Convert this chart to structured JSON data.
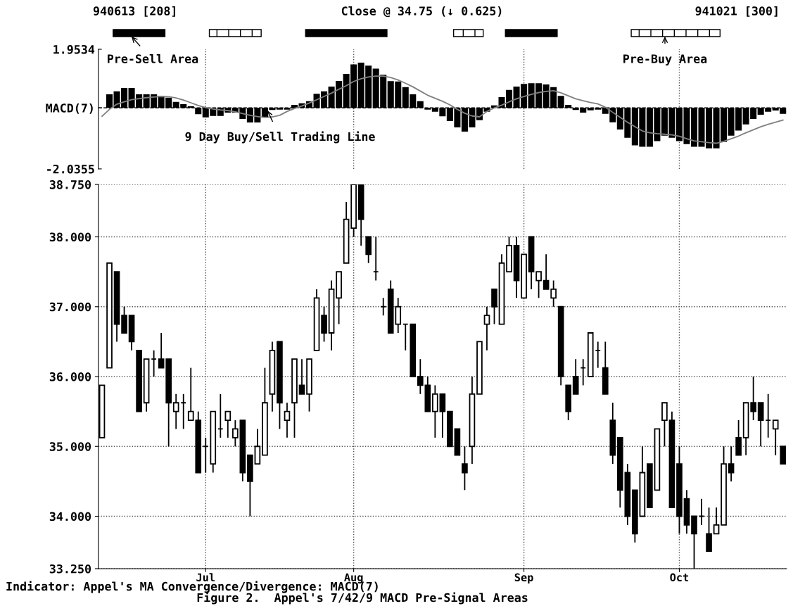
{
  "chart_data": [
    {
      "type": "bar",
      "categories": [
        null,
        null,
        null,
        null,
        null,
        null,
        null,
        null,
        null,
        null,
        null,
        null,
        null,
        null,
        null,
        null,
        null,
        null,
        null,
        null,
        null,
        null,
        null,
        null,
        null,
        null,
        null,
        null,
        null,
        null,
        null,
        null,
        null,
        null,
        null,
        null,
        null,
        null,
        null,
        null,
        null,
        null,
        null,
        null,
        null,
        null,
        null,
        null,
        null,
        null,
        null,
        null,
        null,
        null,
        null,
        null,
        null,
        null,
        null,
        null,
        null,
        null,
        null,
        null,
        null,
        null,
        null,
        null,
        null,
        null,
        null,
        null,
        null,
        null,
        null,
        null,
        null,
        null,
        null,
        null,
        null,
        null,
        null,
        null,
        null,
        null,
        null,
        null,
        null,
        null,
        null,
        null,
        null
      ],
      "series": [
        {
          "type": "bar",
          "color": "#000000",
          "values": [
            null,
            0.45,
            0.55,
            0.66,
            0.66,
            0.45,
            0.45,
            0.45,
            0.4,
            0.34,
            0.2,
            0.12,
            0.05,
            -0.21,
            -0.32,
            -0.27,
            -0.27,
            -0.16,
            -0.16,
            -0.37,
            -0.49,
            -0.49,
            -0.32,
            -0.07,
            -0.06,
            -0.06,
            0.1,
            0.15,
            0.22,
            0.47,
            0.55,
            0.71,
            0.9,
            1.13,
            1.45,
            1.51,
            1.41,
            1.31,
            1.1,
            0.89,
            0.88,
            0.69,
            0.45,
            0.22,
            -0.06,
            -0.13,
            -0.28,
            -0.44,
            -0.65,
            -0.79,
            -0.65,
            -0.41,
            -0.13,
            0.08,
            0.36,
            0.6,
            0.71,
            0.8,
            0.82,
            0.82,
            0.78,
            0.69,
            0.4,
            0.1,
            -0.07,
            -0.16,
            -0.08,
            -0.06,
            -0.2,
            -0.48,
            -0.72,
            -1.0,
            -1.25,
            -1.3,
            -1.3,
            -1.11,
            -0.93,
            -1.0,
            -1.11,
            -1.21,
            -1.3,
            -1.3,
            -1.35,
            -1.35,
            -1.14,
            -0.93,
            -0.76,
            -0.55,
            -0.37,
            -0.23,
            -0.13,
            -0.09,
            -0.2
          ]
        },
        {
          "type": "line",
          "color": "#808080",
          "values": [
            -0.28,
            -0.05,
            0.12,
            0.2,
            0.27,
            0.31,
            0.34,
            0.36,
            0.38,
            0.37,
            0.33,
            0.26,
            0.17,
            0.08,
            0.01,
            -0.04,
            -0.07,
            -0.09,
            -0.13,
            -0.19,
            -0.25,
            -0.29,
            -0.32,
            -0.3,
            -0.25,
            -0.12,
            -0.02,
            0.06,
            0.16,
            0.27,
            0.38,
            0.49,
            0.62,
            0.74,
            0.88,
            0.97,
            1.03,
            1.06,
            1.06,
            1.01,
            0.93,
            0.82,
            0.7,
            0.56,
            0.42,
            0.32,
            0.22,
            0.1,
            -0.05,
            -0.18,
            -0.27,
            -0.3,
            -0.12,
            0.0,
            0.09,
            0.2,
            0.3,
            0.38,
            0.45,
            0.51,
            0.55,
            0.57,
            0.5,
            0.4,
            0.3,
            0.24,
            0.18,
            0.13,
            0.02,
            -0.15,
            -0.32,
            -0.48,
            -0.63,
            -0.77,
            -0.83,
            -0.86,
            -0.88,
            -0.9,
            -0.95,
            -1.03,
            -1.1,
            -1.13,
            -1.16,
            -1.18,
            -1.12,
            -1.03,
            -0.94,
            -0.83,
            -0.73,
            -0.63,
            -0.55,
            -0.48,
            -0.41
          ]
        }
      ],
      "ylim": [
        -2.0355,
        1.9534
      ],
      "yticks": [
        1.9534,
        {
          "value": 0,
          "label": "MACD(7)"
        },
        -2.0355
      ],
      "tick_labels": "y",
      "grid": "x",
      "ref_lines": [
        {
          "axis": "y",
          "value": 0,
          "line_style": "dashed"
        }
      ],
      "annotations": [
        "940613 [208]",
        "Close @ 34.75 (↓ 0.625)",
        "941021 [300]",
        "Pre-Sell Area",
        "Pre-Buy Area",
        "9 Day Buy/Sell Trading Line"
      ]
    },
    {
      "type": "candlestick",
      "categories": [
        null,
        null,
        null,
        null,
        null,
        null,
        null,
        null,
        null,
        null,
        null,
        null,
        null,
        null,
        "Jul",
        null,
        null,
        null,
        null,
        null,
        null,
        null,
        null,
        null,
        null,
        null,
        null,
        null,
        null,
        null,
        null,
        null,
        null,
        null,
        "Aug",
        null,
        null,
        null,
        null,
        null,
        null,
        null,
        null,
        null,
        null,
        null,
        null,
        null,
        null,
        null,
        null,
        null,
        null,
        null,
        null,
        null,
        null,
        "Sep",
        null,
        null,
        null,
        null,
        null,
        null,
        null,
        null,
        null,
        null,
        null,
        null,
        null,
        null,
        null,
        null,
        null,
        null,
        null,
        null,
        "Oct",
        null,
        null,
        null,
        null,
        null,
        null,
        null,
        null,
        null,
        null,
        null,
        null,
        null,
        null
      ],
      "ohlc": [
        [
          35.125,
          35.875,
          35.125,
          35.875
        ],
        [
          36.125,
          37.625,
          36.125,
          37.625
        ],
        [
          37.5,
          37.5,
          36.5,
          36.75
        ],
        [
          36.875,
          37.0,
          36.625,
          36.625
        ],
        [
          36.875,
          36.875,
          36.375,
          36.5
        ],
        [
          36.375,
          36.375,
          35.5,
          35.5
        ],
        [
          35.625,
          36.25,
          35.5,
          36.25
        ],
        [
          36.25,
          36.375,
          36.0,
          36.25
        ],
        [
          36.25,
          36.625,
          36.125,
          36.125
        ],
        [
          36.25,
          36.25,
          35.0,
          35.625
        ],
        [
          35.5,
          35.75,
          35.25,
          35.625
        ],
        [
          35.625,
          35.75,
          35.25,
          35.625
        ],
        [
          35.375,
          36.125,
          35.375,
          35.5
        ],
        [
          35.375,
          35.5,
          34.625,
          34.625
        ],
        [
          35.0,
          35.125,
          34.625,
          35.0
        ],
        [
          34.75,
          35.5,
          34.625,
          35.5
        ],
        [
          35.25,
          35.75,
          35.125,
          35.25
        ],
        [
          35.375,
          35.5,
          35.125,
          35.5
        ],
        [
          35.125,
          35.375,
          35.0,
          35.25
        ],
        [
          35.375,
          35.375,
          34.5,
          34.625
        ],
        [
          34.875,
          34.875,
          34.0,
          34.5
        ],
        [
          34.75,
          35.25,
          34.75,
          35.0
        ],
        [
          34.875,
          36.125,
          34.875,
          35.625
        ],
        [
          35.75,
          36.5,
          35.5,
          36.375
        ],
        [
          36.5,
          36.5,
          35.25,
          35.625
        ],
        [
          35.375,
          35.625,
          35.125,
          35.5
        ],
        [
          35.625,
          36.25,
          35.125,
          36.25
        ],
        [
          35.875,
          36.25,
          35.75,
          35.75
        ],
        [
          35.75,
          36.25,
          35.5,
          36.25
        ],
        [
          36.375,
          37.25,
          36.375,
          37.125
        ],
        [
          36.875,
          37.0,
          36.5,
          36.625
        ],
        [
          36.625,
          37.375,
          36.375,
          37.25
        ],
        [
          37.125,
          37.5,
          36.75,
          37.5
        ],
        [
          37.625,
          38.5,
          37.625,
          38.25
        ],
        [
          38.125,
          38.75,
          38.0,
          38.75
        ],
        [
          38.75,
          38.75,
          37.875,
          38.25
        ],
        [
          38.0,
          38.0,
          37.625,
          37.75
        ],
        [
          37.5,
          38.0,
          37.375,
          37.5
        ],
        [
          37.0,
          37.125,
          36.875,
          37.0
        ],
        [
          37.25,
          37.375,
          36.625,
          36.625
        ],
        [
          36.75,
          37.125,
          36.625,
          37.0
        ],
        [
          36.75,
          36.75,
          36.375,
          36.75
        ],
        [
          36.75,
          36.75,
          36.0,
          36.0
        ],
        [
          36.0,
          36.25,
          35.75,
          35.875
        ],
        [
          35.875,
          36.0,
          35.5,
          35.5
        ],
        [
          35.5,
          35.875,
          35.125,
          35.75
        ],
        [
          35.75,
          35.75,
          35.125,
          35.5
        ],
        [
          35.5,
          35.5,
          35.0,
          35.0
        ],
        [
          35.25,
          35.25,
          34.875,
          34.875
        ],
        [
          34.75,
          35.0,
          34.375,
          34.625
        ],
        [
          35.0,
          36.0,
          34.75,
          35.75
        ],
        [
          35.75,
          36.5,
          35.75,
          36.5
        ],
        [
          36.75,
          37.0,
          36.375,
          36.875
        ],
        [
          37.25,
          37.25,
          36.75,
          37.0
        ],
        [
          36.75,
          37.75,
          36.75,
          37.625
        ],
        [
          37.5,
          38.0,
          37.5,
          37.875
        ],
        [
          37.875,
          38.0,
          37.125,
          37.375
        ],
        [
          37.125,
          37.75,
          37.125,
          37.75
        ],
        [
          38.0,
          38.0,
          37.25,
          37.5
        ],
        [
          37.375,
          37.5,
          37.125,
          37.5
        ],
        [
          37.375,
          37.75,
          37.25,
          37.25
        ],
        [
          37.125,
          37.375,
          37.0,
          37.25
        ],
        [
          37.0,
          37.0,
          35.875,
          36.0
        ],
        [
          35.875,
          35.875,
          35.375,
          35.5
        ],
        [
          36.0,
          36.25,
          35.75,
          35.75
        ],
        [
          36.125,
          36.25,
          35.875,
          36.125
        ],
        [
          36.0,
          36.625,
          36.0,
          36.625
        ],
        [
          36.375,
          36.5,
          36.125,
          36.375
        ],
        [
          36.125,
          36.5,
          35.75,
          35.75
        ],
        [
          35.375,
          35.625,
          34.75,
          34.875
        ],
        [
          35.125,
          35.125,
          34.125,
          34.375
        ],
        [
          34.625,
          34.75,
          33.875,
          34.0
        ],
        [
          34.375,
          34.375,
          33.625,
          33.75
        ],
        [
          34.0,
          35.0,
          34.0,
          34.625
        ],
        [
          34.75,
          34.75,
          34.125,
          34.125
        ],
        [
          34.375,
          35.25,
          34.375,
          35.25
        ],
        [
          35.375,
          35.625,
          35.0,
          35.625
        ],
        [
          35.375,
          35.5,
          34.125,
          34.125
        ],
        [
          34.75,
          35.0,
          33.75,
          34.0
        ],
        [
          34.25,
          34.375,
          33.75,
          33.875
        ],
        [
          34.0,
          34.0,
          33.25,
          33.75
        ],
        [
          34.0,
          34.25,
          33.875,
          34.0
        ],
        [
          33.75,
          34.125,
          33.5,
          33.5
        ],
        [
          33.75,
          34.125,
          33.75,
          33.875
        ],
        [
          33.875,
          35.0,
          33.875,
          34.75
        ],
        [
          34.75,
          35.0,
          34.5,
          34.625
        ],
        [
          35.125,
          35.375,
          34.875,
          34.875
        ],
        [
          35.125,
          35.625,
          34.875,
          35.625
        ],
        [
          35.625,
          36.0,
          35.375,
          35.5
        ],
        [
          35.625,
          35.625,
          35.0,
          35.375
        ],
        [
          35.375,
          35.75,
          35.125,
          35.375
        ],
        [
          35.25,
          35.375,
          34.875,
          35.375
        ],
        [
          35.0,
          35.0,
          34.75,
          34.75
        ]
      ],
      "ylim": [
        33.25,
        38.75
      ],
      "yticks": [
        {
          "value": 38.75,
          "label": "38.750"
        },
        {
          "value": 38,
          "label": "38.000"
        },
        {
          "value": 37,
          "label": "37.000"
        },
        {
          "value": 36,
          "label": "36.000"
        },
        {
          "value": 35,
          "label": "35.000"
        },
        {
          "value": 34,
          "label": "34.000"
        },
        {
          "value": 33.25,
          "label": "33.250"
        }
      ],
      "grid": true,
      "annotations": [
        "Indicator: Appel's MA Convergence/Divergence: MACD(7)",
        "Figure 2.  Appel's 7/42/9 MACD Pre-Signal Areas"
      ]
    }
  ]
}
